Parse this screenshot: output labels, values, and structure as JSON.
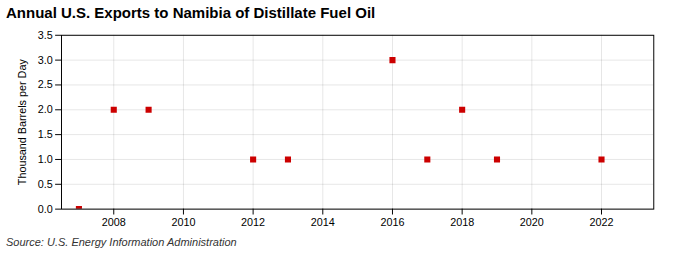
{
  "chart_data": {
    "type": "scatter",
    "title": "Annual U.S. Exports to Namibia of Distillate Fuel Oil",
    "ylabel": "Thousand Barrels per Day",
    "caption": "Source: U.S. Energy Information Administration",
    "x": [
      2007,
      2008,
      2009,
      2012,
      2013,
      2016,
      2017,
      2018,
      2019,
      2022
    ],
    "values": [
      0,
      2,
      2,
      1,
      1,
      3,
      1,
      2,
      1,
      1
    ],
    "color": "#cc0000",
    "marker": "square",
    "xlim": [
      2006.5,
      2023.5
    ],
    "xticks": [
      2008,
      2010,
      2012,
      2014,
      2016,
      2018,
      2020,
      2022
    ],
    "ylim": [
      0,
      3.5
    ],
    "yticks": [
      {
        "value": 0,
        "label": "0.0"
      },
      0.5,
      {
        "value": 1,
        "label": "1.0"
      },
      1.5,
      {
        "value": 2,
        "label": "2.0"
      },
      2.5,
      {
        "value": 3,
        "label": "3.0"
      },
      3.5
    ],
    "grid": true
  }
}
